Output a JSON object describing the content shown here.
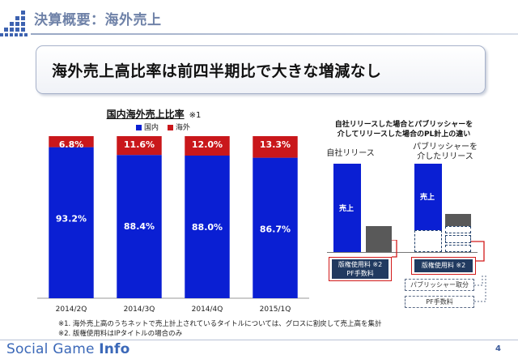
{
  "header": {
    "title": "決算概要：海外売上"
  },
  "headline": "海外売上高比率は前四半期比で大きな増減なし",
  "chart": {
    "title": "国内海外売上比率",
    "title_note": "※1",
    "legend": [
      "国内",
      "海外"
    ]
  },
  "chart_data": {
    "type": "bar",
    "stacked": true,
    "normalized": true,
    "categories": [
      "2014/2Q",
      "2014/3Q",
      "2014/4Q",
      "2015/1Q"
    ],
    "series": [
      {
        "name": "国内",
        "values": [
          93.2,
          88.4,
          88.0,
          86.7
        ],
        "labels": [
          "93.2%",
          "88.4%",
          "88.0%",
          "86.7%"
        ]
      },
      {
        "name": "海外",
        "values": [
          6.8,
          11.6,
          12.0,
          13.3
        ],
        "labels": [
          "6.8%",
          "11.6%",
          "12.0%",
          "13.3%"
        ]
      }
    ],
    "colors": {
      "国内": "#0a1fd3",
      "海外": "#c9171b"
    },
    "ylim": [
      0,
      100
    ],
    "title": "国内海外売上比率",
    "legend_position": "top"
  },
  "diagram": {
    "title": [
      "自社リリースした場合とパブリッシャーを",
      "介してリリースした場合のPL計上の違い"
    ],
    "left_label": "自社リリース",
    "right_label": [
      "パブリッシャーを",
      "介したリリース"
    ],
    "sales_label": "売上",
    "left_cost_box": [
      "版権使用料 ※2",
      "PF手数料"
    ],
    "right_cost_box": "版権使用料 ※2",
    "publisher_share": "パブリッシャー取分",
    "pf_fee": "PF手数料"
  },
  "footnotes": [
    "※1. 海外売上高のうちネットで売上計上されているタイトルについては、グロスに割戻して売上高を集計",
    "※2. 版権使用料はIPタイトルの場合のみ"
  ],
  "footer": {
    "logo_regular": "Social Game ",
    "logo_bold": "Info",
    "page": "4"
  }
}
